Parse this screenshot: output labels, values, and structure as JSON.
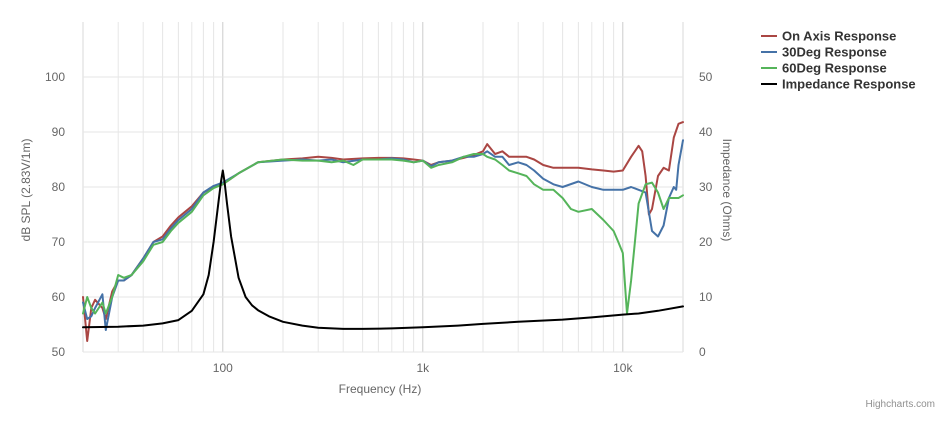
{
  "chart_data": {
    "type": "line",
    "x_axis": {
      "label": "Frequency (Hz)",
      "scale": "log",
      "range": [
        20,
        20000
      ],
      "tick_values": [
        100,
        1000,
        10000
      ],
      "tick_labels": [
        "100",
        "1k",
        "10k"
      ],
      "minor_grid": true
    },
    "y_axis_left": {
      "label": "dB SPL (2.83V/1m)",
      "range": [
        50,
        110
      ],
      "ticks": [
        50,
        60,
        70,
        80,
        90,
        100
      ]
    },
    "y_axis_right": {
      "label": "Impedance (Ohms)",
      "range": [
        0,
        60
      ],
      "ticks": [
        0,
        10,
        20,
        30,
        40,
        50
      ]
    },
    "grid": true,
    "legend_position": "top-right",
    "series": [
      {
        "name": "On Axis Response",
        "color": "#aa4643",
        "axis": "left",
        "points": [
          [
            20,
            60
          ],
          [
            21,
            52
          ],
          [
            22,
            58
          ],
          [
            23,
            59.5
          ],
          [
            25,
            58
          ],
          [
            26,
            56
          ],
          [
            28,
            61
          ],
          [
            30,
            63
          ],
          [
            32,
            63
          ],
          [
            35,
            64
          ],
          [
            40,
            67
          ],
          [
            45,
            70
          ],
          [
            50,
            71
          ],
          [
            55,
            73
          ],
          [
            60,
            74.5
          ],
          [
            70,
            76.5
          ],
          [
            80,
            79
          ],
          [
            90,
            80
          ],
          [
            100,
            80.5
          ],
          [
            120,
            82.5
          ],
          [
            150,
            84.5
          ],
          [
            200,
            85
          ],
          [
            250,
            85.2
          ],
          [
            300,
            85.5
          ],
          [
            350,
            85.3
          ],
          [
            400,
            85
          ],
          [
            500,
            85.2
          ],
          [
            600,
            85.3
          ],
          [
            700,
            85.3
          ],
          [
            800,
            85.2
          ],
          [
            900,
            85
          ],
          [
            1000,
            84.8
          ],
          [
            1100,
            84
          ],
          [
            1200,
            84.5
          ],
          [
            1400,
            84.8
          ],
          [
            1600,
            85.3
          ],
          [
            1800,
            85.8
          ],
          [
            2000,
            86.5
          ],
          [
            2100,
            87.8
          ],
          [
            2300,
            86
          ],
          [
            2500,
            86.5
          ],
          [
            2700,
            85.5
          ],
          [
            3000,
            85.5
          ],
          [
            3300,
            85.5
          ],
          [
            3600,
            85
          ],
          [
            4000,
            84
          ],
          [
            4500,
            83.5
          ],
          [
            5000,
            83.5
          ],
          [
            6000,
            83.5
          ],
          [
            7000,
            83.2
          ],
          [
            8000,
            83
          ],
          [
            9000,
            82.8
          ],
          [
            10000,
            83
          ],
          [
            11000,
            85.5
          ],
          [
            12000,
            87.5
          ],
          [
            12500,
            86.5
          ],
          [
            13000,
            82
          ],
          [
            13500,
            75
          ],
          [
            14000,
            76
          ],
          [
            15000,
            82
          ],
          [
            16000,
            83.5
          ],
          [
            17000,
            83
          ],
          [
            18000,
            89
          ],
          [
            19000,
            91.5
          ],
          [
            20000,
            91.8
          ]
        ]
      },
      {
        "name": "30Deg Response",
        "color": "#4572a7",
        "axis": "left",
        "points": [
          [
            20,
            59
          ],
          [
            21,
            56
          ],
          [
            22,
            56.5
          ],
          [
            23,
            58
          ],
          [
            25,
            60.5
          ],
          [
            26,
            54
          ],
          [
            28,
            60
          ],
          [
            30,
            63
          ],
          [
            32,
            63
          ],
          [
            35,
            64
          ],
          [
            40,
            67
          ],
          [
            45,
            70
          ],
          [
            50,
            70.5
          ],
          [
            55,
            72.5
          ],
          [
            60,
            74
          ],
          [
            70,
            76
          ],
          [
            80,
            79
          ],
          [
            90,
            80.2
          ],
          [
            100,
            80.8
          ],
          [
            120,
            82.5
          ],
          [
            150,
            84.5
          ],
          [
            200,
            84.8
          ],
          [
            250,
            85
          ],
          [
            300,
            84.8
          ],
          [
            350,
            85
          ],
          [
            400,
            84.5
          ],
          [
            500,
            85
          ],
          [
            600,
            85
          ],
          [
            700,
            85.2
          ],
          [
            800,
            85
          ],
          [
            900,
            84.5
          ],
          [
            1000,
            84.8
          ],
          [
            1100,
            83.8
          ],
          [
            1200,
            84.5
          ],
          [
            1400,
            84.8
          ],
          [
            1600,
            85.5
          ],
          [
            1800,
            85.5
          ],
          [
            2000,
            86
          ],
          [
            2100,
            86.5
          ],
          [
            2300,
            85.5
          ],
          [
            2500,
            85.5
          ],
          [
            2700,
            84
          ],
          [
            3000,
            84.5
          ],
          [
            3300,
            84
          ],
          [
            3600,
            83
          ],
          [
            4000,
            81.5
          ],
          [
            4500,
            80.5
          ],
          [
            5000,
            80
          ],
          [
            6000,
            81
          ],
          [
            7000,
            80
          ],
          [
            8000,
            79.5
          ],
          [
            9000,
            79.5
          ],
          [
            10000,
            79.5
          ],
          [
            11000,
            80
          ],
          [
            12000,
            79.5
          ],
          [
            13000,
            79
          ],
          [
            14000,
            72
          ],
          [
            15000,
            71
          ],
          [
            16000,
            73
          ],
          [
            17000,
            78
          ],
          [
            18000,
            80
          ],
          [
            18500,
            79.5
          ],
          [
            19000,
            84
          ],
          [
            20000,
            88.5
          ]
        ]
      },
      {
        "name": "60Deg Response",
        "color": "#55b45a",
        "axis": "left",
        "points": [
          [
            20,
            57
          ],
          [
            21,
            60
          ],
          [
            22,
            58
          ],
          [
            23,
            57
          ],
          [
            25,
            59
          ],
          [
            26,
            57
          ],
          [
            28,
            60
          ],
          [
            30,
            64
          ],
          [
            32,
            63.5
          ],
          [
            35,
            64
          ],
          [
            40,
            66.5
          ],
          [
            45,
            69.5
          ],
          [
            50,
            70
          ],
          [
            55,
            72
          ],
          [
            60,
            73.5
          ],
          [
            70,
            75.5
          ],
          [
            80,
            78.5
          ],
          [
            90,
            79.8
          ],
          [
            100,
            80.5
          ],
          [
            120,
            82.5
          ],
          [
            150,
            84.5
          ],
          [
            200,
            85
          ],
          [
            250,
            84.8
          ],
          [
            300,
            84.8
          ],
          [
            350,
            84.5
          ],
          [
            400,
            84.8
          ],
          [
            450,
            84
          ],
          [
            500,
            85
          ],
          [
            600,
            85
          ],
          [
            700,
            85
          ],
          [
            800,
            84.8
          ],
          [
            900,
            84.5
          ],
          [
            1000,
            84.8
          ],
          [
            1100,
            83.5
          ],
          [
            1200,
            84
          ],
          [
            1400,
            84.5
          ],
          [
            1600,
            85.5
          ],
          [
            1800,
            86
          ],
          [
            2000,
            86
          ],
          [
            2100,
            85.5
          ],
          [
            2300,
            85
          ],
          [
            2500,
            84
          ],
          [
            2700,
            83
          ],
          [
            3000,
            82.5
          ],
          [
            3300,
            82
          ],
          [
            3600,
            80.5
          ],
          [
            4000,
            79.5
          ],
          [
            4500,
            79.5
          ],
          [
            5000,
            78
          ],
          [
            5500,
            76
          ],
          [
            6000,
            75.5
          ],
          [
            7000,
            76
          ],
          [
            8000,
            74
          ],
          [
            9000,
            72
          ],
          [
            9500,
            70
          ],
          [
            10000,
            68
          ],
          [
            10500,
            57
          ],
          [
            11000,
            63
          ],
          [
            11500,
            70
          ],
          [
            12000,
            77
          ],
          [
            13000,
            80.5
          ],
          [
            14000,
            80.8
          ],
          [
            15000,
            79
          ],
          [
            16000,
            76
          ],
          [
            17000,
            78
          ],
          [
            18000,
            78
          ],
          [
            19000,
            78
          ],
          [
            20000,
            78.5
          ]
        ]
      },
      {
        "name": "Impedance Response",
        "color": "#000000",
        "axis": "right",
        "points": [
          [
            20,
            4.5
          ],
          [
            30,
            4.6
          ],
          [
            40,
            4.8
          ],
          [
            50,
            5.2
          ],
          [
            60,
            5.8
          ],
          [
            70,
            7.5
          ],
          [
            80,
            10.5
          ],
          [
            85,
            14
          ],
          [
            90,
            20
          ],
          [
            95,
            27
          ],
          [
            98,
            31
          ],
          [
            100,
            33
          ],
          [
            102,
            31
          ],
          [
            105,
            27
          ],
          [
            110,
            21
          ],
          [
            120,
            13.5
          ],
          [
            130,
            10
          ],
          [
            140,
            8.5
          ],
          [
            150,
            7.6
          ],
          [
            170,
            6.5
          ],
          [
            200,
            5.5
          ],
          [
            250,
            4.8
          ],
          [
            300,
            4.4
          ],
          [
            400,
            4.2
          ],
          [
            500,
            4.2
          ],
          [
            700,
            4.3
          ],
          [
            1000,
            4.5
          ],
          [
            1500,
            4.8
          ],
          [
            2000,
            5.1
          ],
          [
            3000,
            5.5
          ],
          [
            5000,
            5.9
          ],
          [
            7000,
            6.3
          ],
          [
            10000,
            6.8
          ],
          [
            12000,
            7
          ],
          [
            15000,
            7.5
          ],
          [
            20000,
            8.3
          ]
        ]
      }
    ]
  },
  "credits": "Highcharts.com"
}
